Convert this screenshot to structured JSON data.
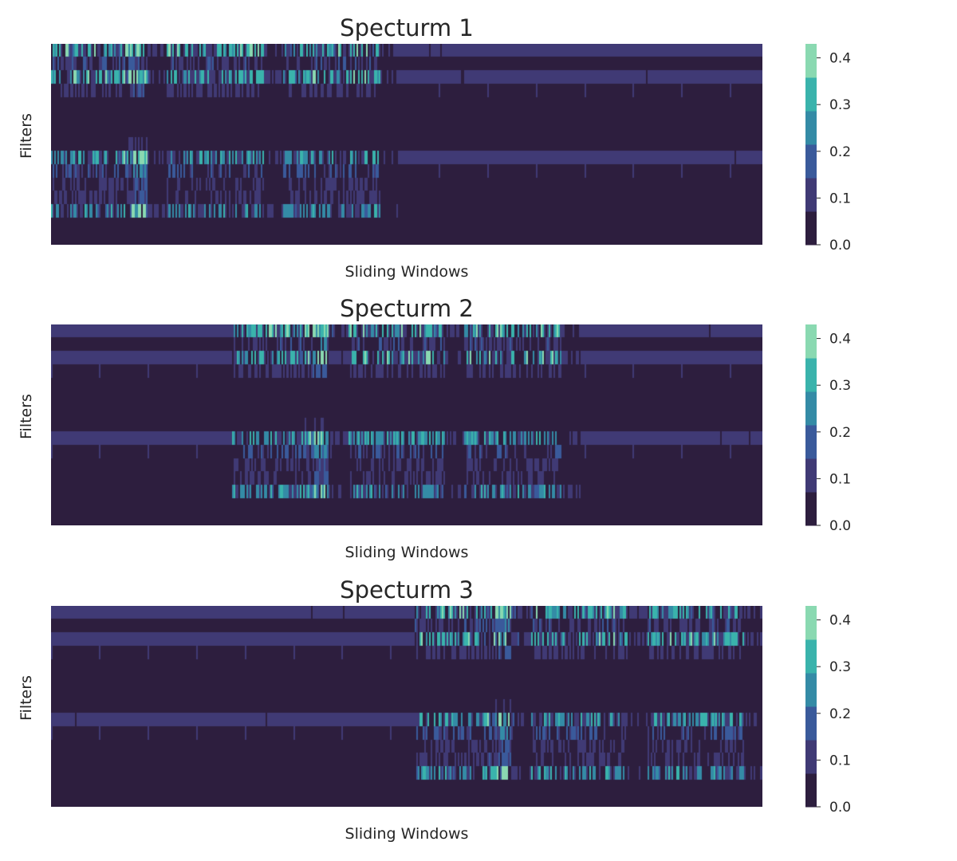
{
  "chart_data": [
    {
      "type": "heatmap",
      "title": "Specturm 1",
      "xlabel": "Sliding Windows",
      "ylabel": "Filters",
      "n_filters": 15,
      "n_windows": 440,
      "active_window_range": [
        0,
        215
      ],
      "peak_window_center": 55,
      "filter_base_levels": [
        0.1,
        0.01,
        0.1,
        0.02,
        0.0,
        0.0,
        0.0,
        0.0,
        0.1,
        0.02,
        0.0,
        0.0,
        0.0,
        0.0,
        0.0
      ],
      "filter_activity_gain": [
        0.17,
        0.07,
        0.17,
        0.06,
        0.0,
        0.0,
        0.0,
        0.03,
        0.15,
        0.08,
        0.05,
        0.06,
        0.14,
        0.0,
        0.0
      ],
      "colorbar": {
        "vmin": 0.0,
        "vmax": 0.43,
        "ticks": [
          0.0,
          0.1,
          0.2,
          0.3,
          0.4
        ]
      }
    },
    {
      "type": "heatmap",
      "title": "Specturm 2",
      "xlabel": "Sliding Windows",
      "ylabel": "Filters",
      "n_filters": 15,
      "n_windows": 440,
      "active_window_range": [
        112,
        328
      ],
      "peak_window_center": 168,
      "filter_base_levels": [
        0.1,
        0.01,
        0.1,
        0.02,
        0.0,
        0.0,
        0.0,
        0.0,
        0.1,
        0.02,
        0.0,
        0.0,
        0.0,
        0.0,
        0.0
      ],
      "filter_activity_gain": [
        0.17,
        0.07,
        0.17,
        0.06,
        0.0,
        0.0,
        0.0,
        0.03,
        0.15,
        0.08,
        0.05,
        0.06,
        0.14,
        0.0,
        0.0
      ],
      "colorbar": {
        "vmin": 0.0,
        "vmax": 0.43,
        "ticks": [
          0.0,
          0.1,
          0.2,
          0.3,
          0.4
        ]
      }
    },
    {
      "type": "heatmap",
      "title": "Specturm 3",
      "xlabel": "Sliding Windows",
      "ylabel": "Filters",
      "n_filters": 15,
      "n_windows": 440,
      "active_window_range": [
        225,
        440
      ],
      "peak_window_center": 282,
      "filter_base_levels": [
        0.1,
        0.01,
        0.1,
        0.02,
        0.0,
        0.0,
        0.0,
        0.0,
        0.1,
        0.02,
        0.0,
        0.0,
        0.0,
        0.0,
        0.0
      ],
      "filter_activity_gain": [
        0.17,
        0.07,
        0.17,
        0.06,
        0.0,
        0.0,
        0.0,
        0.03,
        0.15,
        0.08,
        0.05,
        0.06,
        0.14,
        0.0,
        0.0
      ],
      "colorbar": {
        "vmin": 0.0,
        "vmax": 0.43,
        "ticks": [
          0.0,
          0.1,
          0.2,
          0.3,
          0.4
        ]
      }
    }
  ],
  "palette": [
    "#2d1e3e",
    "#403a75",
    "#3a5a9b",
    "#348ba6",
    "#3ab3ac",
    "#8ad9b1"
  ]
}
